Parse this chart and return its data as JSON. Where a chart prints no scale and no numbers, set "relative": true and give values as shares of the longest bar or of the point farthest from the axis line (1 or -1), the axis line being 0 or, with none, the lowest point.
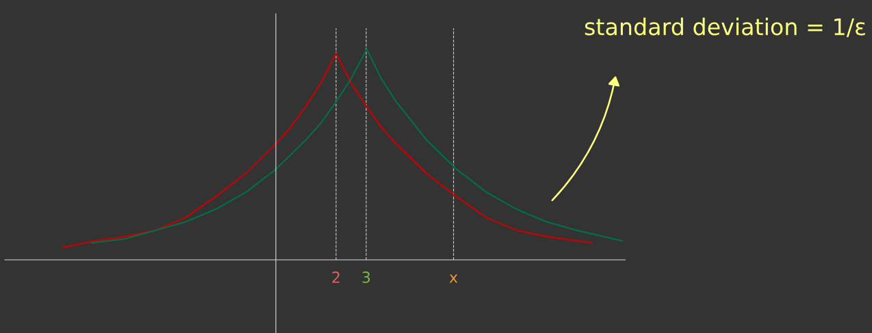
{
  "chart_data": {
    "type": "line",
    "relative": true,
    "xlim": [
      -9,
      11.6
    ],
    "xticks": [
      2,
      3,
      {
        "value": 5.9,
        "label": "x"
      }
    ],
    "series": [
      {
        "color": "#cc0000",
        "x": [
          -7.05,
          -6,
          -5,
          -4,
          -3,
          -2,
          -1,
          0,
          0.5,
          1,
          1.5,
          2,
          2.5,
          3,
          3.5,
          4,
          5,
          6,
          7,
          8,
          9,
          10.5
        ],
        "values": [
          0.06,
          0.09,
          0.11,
          0.14,
          0.2,
          0.3,
          0.41,
          0.55,
          0.63,
          0.73,
          0.84,
          0.98,
          0.84,
          0.73,
          0.63,
          0.55,
          0.41,
          0.3,
          0.2,
          0.14,
          0.11,
          0.08
        ]
      },
      {
        "color": "#00704a",
        "x": [
          -6.1,
          -5,
          -4,
          -3,
          -2,
          -1,
          0,
          1,
          1.5,
          2,
          2.5,
          3.02,
          3.5,
          4,
          5,
          6,
          7,
          8,
          9,
          10,
          11.5
        ],
        "values": [
          0.08,
          0.1,
          0.14,
          0.18,
          0.24,
          0.32,
          0.43,
          0.57,
          0.65,
          0.75,
          0.86,
          1.0,
          0.86,
          0.75,
          0.57,
          0.43,
          0.32,
          0.24,
          0.18,
          0.14,
          0.09
        ]
      }
    ],
    "ref_lines": [
      {
        "axis": "x",
        "value": 2,
        "color": "#cccccc",
        "line_style": "dashed"
      },
      {
        "axis": "x",
        "value": 3,
        "color": "#cccccc",
        "line_style": "dashed"
      },
      {
        "axis": "x",
        "value": 5.9,
        "color": "#cccccc",
        "line_style": "dashed"
      }
    ],
    "annotations": [
      "standard deviation = 1/ε"
    ]
  }
}
